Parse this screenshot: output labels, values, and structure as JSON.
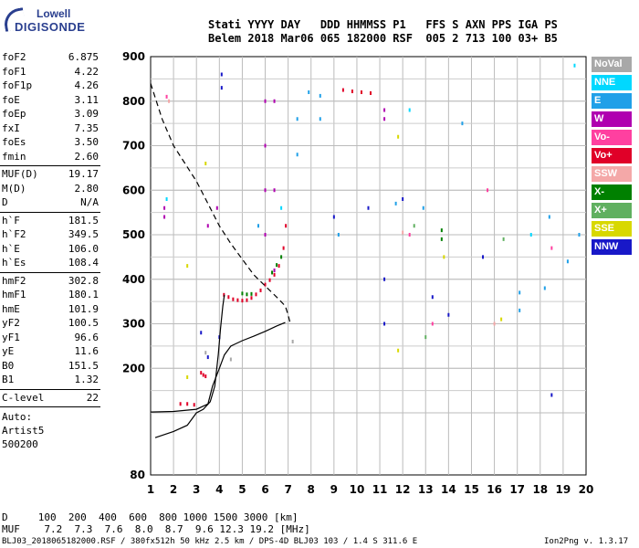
{
  "logo": {
    "line1": "Lowell",
    "line2": "DIGISONDE"
  },
  "header": {
    "line1": "Stati YYYY DAY   DDD HHMMSS P1   FFS S AXN PPS IGA PS",
    "line2": "Belem 2018 Mar06 065 182000 RSF  005 2 713 100 03+ B5"
  },
  "params": [
    {
      "label": "foF2",
      "value": "6.875"
    },
    {
      "label": "foF1",
      "value": "4.22"
    },
    {
      "label": "foF1p",
      "value": "4.26"
    },
    {
      "label": "foE",
      "value": "3.11"
    },
    {
      "label": "foEp",
      "value": "3.09"
    },
    {
      "label": "fxI",
      "value": "7.35"
    },
    {
      "label": "foEs",
      "value": "3.50"
    },
    {
      "label": "fmin",
      "value": "2.60"
    },
    {
      "label": "MUF(D)",
      "value": "19.17"
    },
    {
      "label": "M(D)",
      "value": "2.80"
    },
    {
      "label": "D",
      "value": "N/A"
    },
    {
      "label": "h`F",
      "value": "181.5"
    },
    {
      "label": "h`F2",
      "value": "349.5"
    },
    {
      "label": "h`E",
      "value": "106.0"
    },
    {
      "label": "h`Es",
      "value": "108.4"
    },
    {
      "label": "hmF2",
      "value": "302.8"
    },
    {
      "label": "hmF1",
      "value": "180.1"
    },
    {
      "label": "hmE",
      "value": "101.9"
    },
    {
      "label": "yF2",
      "value": "100.5"
    },
    {
      "label": "yF1",
      "value": "96.6"
    },
    {
      "label": "yE",
      "value": "11.6"
    },
    {
      "label": "B0",
      "value": "151.5"
    },
    {
      "label": "B1",
      "value": "1.32"
    },
    {
      "label": "C-level",
      "value": "22"
    }
  ],
  "auto": {
    "line1": "Auto:",
    "line2": "Artist5",
    "line3": "500200"
  },
  "legend": [
    {
      "label": "NoVal",
      "color": "#a8a8a8"
    },
    {
      "label": "NNE",
      "color": "#00d8ff"
    },
    {
      "label": "E",
      "color": "#20a0e8"
    },
    {
      "label": "W",
      "color": "#b000b0"
    },
    {
      "label": "Vo-",
      "color": "#ff40a0"
    },
    {
      "label": "Vo+",
      "color": "#e00028"
    },
    {
      "label": "SSW",
      "color": "#f4a8a8"
    },
    {
      "label": "X-",
      "color": "#008000"
    },
    {
      "label": "X+",
      "color": "#60b060"
    },
    {
      "label": "SSE",
      "color": "#d8d800"
    },
    {
      "label": "NNW",
      "color": "#1818c8"
    }
  ],
  "footer": {
    "d_line": "D     100  200  400  600  800 1000 1500 3000 [km]",
    "muf_line": "MUF    7.2  7.3  7.6  8.0  8.7  9.6 12.3 19.2 [MHz]",
    "file_line": "BLJ03_2018065182000.RSF / 380fx512h 50 kHz 2.5 km / DPS-4D BLJ03 103 / 1.4 S 311.6 E",
    "version": "Ion2Png v. 1.3.17"
  },
  "chart_data": {
    "type": "scatter",
    "xlabel": "",
    "ylabel": "",
    "xlim": [
      1,
      20
    ],
    "ylim": [
      80,
      900
    ],
    "x_ticks": [
      1,
      2,
      3,
      4,
      5,
      6,
      7,
      8,
      9,
      10,
      11,
      12,
      13,
      14,
      15,
      16,
      17,
      18,
      19,
      20
    ],
    "y_ticks": [
      80,
      100,
      200,
      300,
      400,
      500,
      600,
      700,
      800,
      900
    ],
    "y_tick_labels": [
      "80",
      "",
      "200",
      "300",
      "400",
      "500",
      "600",
      "700",
      "800",
      "900"
    ],
    "grid": true,
    "series": [
      {
        "name": "Vo+",
        "color": "#e00028",
        "points": [
          [
            4.2,
            365
          ],
          [
            4.4,
            360
          ],
          [
            4.6,
            355
          ],
          [
            4.8,
            353
          ],
          [
            5.0,
            352
          ],
          [
            5.2,
            353
          ],
          [
            5.4,
            358
          ],
          [
            5.6,
            366
          ],
          [
            5.8,
            375
          ],
          [
            6.0,
            388
          ],
          [
            6.2,
            398
          ],
          [
            6.4,
            410
          ],
          [
            6.6,
            430
          ],
          [
            6.8,
            470
          ],
          [
            6.9,
            520
          ],
          [
            9.4,
            825
          ],
          [
            9.8,
            822
          ],
          [
            10.2,
            820
          ],
          [
            10.6,
            818
          ],
          [
            3.2,
            190
          ],
          [
            3.3,
            185
          ],
          [
            3.4,
            182
          ],
          [
            2.3,
            120
          ],
          [
            2.6,
            120
          ],
          [
            2.9,
            118
          ]
        ]
      },
      {
        "name": "X-",
        "color": "#008000",
        "points": [
          [
            5.0,
            368
          ],
          [
            5.2,
            366
          ],
          [
            5.4,
            367
          ],
          [
            6.3,
            415
          ],
          [
            6.5,
            432
          ],
          [
            6.7,
            450
          ],
          [
            13.7,
            510
          ],
          [
            13.7,
            490
          ]
        ]
      },
      {
        "name": "W",
        "color": "#b000b0",
        "points": [
          [
            6.0,
            500
          ],
          [
            6.0,
            600
          ],
          [
            6.0,
            700
          ],
          [
            6.0,
            800
          ],
          [
            6.4,
            420
          ],
          [
            6.4,
            600
          ],
          [
            6.4,
            800
          ],
          [
            11.2,
            780
          ],
          [
            11.2,
            760
          ],
          [
            1.6,
            560
          ],
          [
            1.6,
            540
          ],
          [
            3.9,
            560
          ],
          [
            3.5,
            520
          ]
        ]
      },
      {
        "name": "NNW",
        "color": "#1818c8",
        "points": [
          [
            3.2,
            280
          ],
          [
            3.5,
            225
          ],
          [
            4.0,
            270
          ],
          [
            9.0,
            540
          ],
          [
            10.5,
            560
          ],
          [
            11.2,
            300
          ],
          [
            11.2,
            400
          ],
          [
            12.0,
            580
          ],
          [
            13.3,
            360
          ],
          [
            14.0,
            320
          ],
          [
            15.5,
            450
          ],
          [
            18.5,
            140
          ],
          [
            4.1,
            860
          ],
          [
            4.1,
            830
          ]
        ]
      },
      {
        "name": "E",
        "color": "#20a0e8",
        "points": [
          [
            5.7,
            520
          ],
          [
            7.4,
            760
          ],
          [
            7.4,
            680
          ],
          [
            7.9,
            820
          ],
          [
            8.4,
            812
          ],
          [
            8.4,
            760
          ],
          [
            9.2,
            500
          ],
          [
            11.7,
            570
          ],
          [
            12.9,
            560
          ],
          [
            14.6,
            750
          ],
          [
            17.1,
            370
          ],
          [
            17.1,
            330
          ],
          [
            18.2,
            380
          ],
          [
            18.4,
            540
          ],
          [
            19.2,
            440
          ],
          [
            19.7,
            500
          ]
        ]
      },
      {
        "name": "SSE",
        "color": "#d8d800",
        "points": [
          [
            2.6,
            430
          ],
          [
            2.6,
            180
          ],
          [
            3.4,
            660
          ],
          [
            11.8,
            720
          ],
          [
            11.8,
            240
          ],
          [
            13.8,
            450
          ],
          [
            16.3,
            310
          ]
        ]
      },
      {
        "name": "NNE",
        "color": "#00d8ff",
        "points": [
          [
            1.7,
            580
          ],
          [
            6.7,
            560
          ],
          [
            12.3,
            780
          ],
          [
            17.6,
            500
          ],
          [
            19.5,
            880
          ]
        ]
      },
      {
        "name": "Vo-",
        "color": "#ff40a0",
        "points": [
          [
            1.7,
            810
          ],
          [
            12.3,
            500
          ],
          [
            15.7,
            600
          ],
          [
            18.5,
            470
          ],
          [
            13.3,
            300
          ]
        ]
      },
      {
        "name": "SSW",
        "color": "#f4a8a8",
        "points": [
          [
            1.8,
            800
          ],
          [
            16.0,
            300
          ],
          [
            12.0,
            505
          ]
        ]
      },
      {
        "name": "X+",
        "color": "#60b060",
        "points": [
          [
            12.5,
            520
          ],
          [
            16.4,
            490
          ],
          [
            13.0,
            270
          ]
        ]
      },
      {
        "name": "NoVal",
        "color": "#a8a8a8",
        "points": [
          [
            3.4,
            235
          ],
          [
            4.5,
            220
          ],
          [
            7.2,
            260
          ]
        ]
      }
    ],
    "traces": [
      {
        "name": "profile",
        "style": "solid",
        "color": "#000000",
        "points": [
          [
            1,
            101.9
          ],
          [
            2,
            103
          ],
          [
            3,
            108
          ],
          [
            3.5,
            120
          ],
          [
            3.7,
            160
          ],
          [
            4.0,
            200
          ],
          [
            4.22,
            230
          ],
          [
            4.5,
            250
          ],
          [
            5.0,
            262
          ],
          [
            5.5,
            272
          ],
          [
            6.0,
            283
          ],
          [
            6.5,
            295
          ],
          [
            6.875,
            302.8
          ]
        ]
      },
      {
        "name": "leading-edge",
        "style": "solid",
        "color": "#000000",
        "points": [
          [
            1.2,
            92
          ],
          [
            2.0,
            94
          ],
          [
            2.6,
            96
          ],
          [
            3.0,
            100
          ],
          [
            3.3,
            108
          ],
          [
            3.6,
            125
          ],
          [
            3.8,
            160
          ],
          [
            3.95,
            230
          ],
          [
            4.05,
            290
          ],
          [
            4.15,
            340
          ],
          [
            4.22,
            365
          ]
        ]
      },
      {
        "name": "extrapolated",
        "style": "dashed",
        "color": "#000000",
        "points": [
          [
            1,
            840
          ],
          [
            1.5,
            760
          ],
          [
            2,
            700
          ],
          [
            2.5,
            660
          ],
          [
            3,
            620
          ],
          [
            3.5,
            570
          ],
          [
            4,
            520
          ],
          [
            4.5,
            480
          ],
          [
            5,
            445
          ],
          [
            5.5,
            410
          ],
          [
            6,
            385
          ],
          [
            6.5,
            360
          ],
          [
            6.875,
            340
          ],
          [
            7.0,
            320
          ],
          [
            7.1,
            300
          ]
        ]
      }
    ]
  }
}
